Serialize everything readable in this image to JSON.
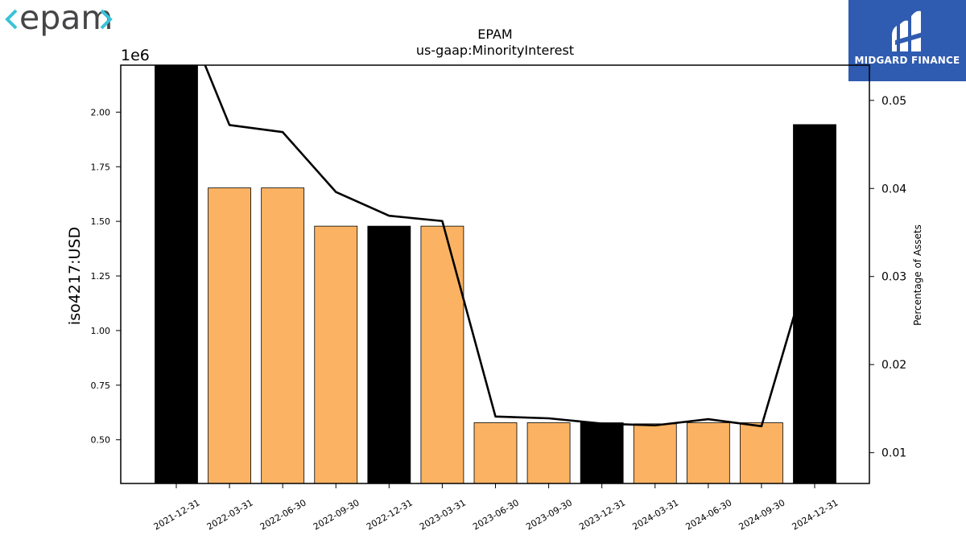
{
  "header": {
    "logo_text": "epam",
    "brand_name": "MIDGARD FINANCE"
  },
  "colors": {
    "bar_default": "#fbb363",
    "bar_highlight": "#000000",
    "line": "#000000",
    "brand_bg": "#2f5bb0",
    "epam_bracket": "#39c2d7",
    "epam_text": "#464547"
  },
  "chart_data": {
    "type": "bar",
    "title": "EPAM",
    "subtitle": "us-gaap:MinorityInterest",
    "ylabel": "iso4217:USD",
    "y_multiplier": "1e6",
    "ylabel_right": "Percentage of Assets",
    "ylim": [
      0.3,
      2.215
    ],
    "ylim_right": [
      0.0065,
      0.054
    ],
    "yticks": [
      "0.50",
      "0.75",
      "1.00",
      "1.25",
      "1.50",
      "1.75",
      "2.00"
    ],
    "yticks_right": [
      "0.01",
      "0.02",
      "0.03",
      "0.04",
      "0.05"
    ],
    "categories": [
      "2021-12-31",
      "2022-03-31",
      "2022-06-30",
      "2022-09-30",
      "2022-12-31",
      "2023-03-31",
      "2023-06-30",
      "2023-09-30",
      "2023-12-31",
      "2024-03-31",
      "2024-06-30",
      "2024-09-30",
      "2024-12-31"
    ],
    "series": [
      {
        "values": [
          2.4,
          1.653,
          1.653,
          1.478,
          1.478,
          1.478,
          0.578,
          0.578,
          0.578,
          0.573,
          0.578,
          0.578,
          1.943
        ],
        "highlight": [
          true,
          false,
          false,
          false,
          true,
          false,
          false,
          false,
          true,
          false,
          false,
          false,
          true
        ]
      },
      {
        "axis": "right",
        "type": "line",
        "values": [
          0.062,
          0.0472,
          0.0464,
          0.0396,
          0.0369,
          0.0363,
          0.0141,
          0.0139,
          0.0133,
          0.0131,
          0.0138,
          0.013,
          0.0335
        ]
      }
    ],
    "grid": false,
    "legend": "none"
  }
}
